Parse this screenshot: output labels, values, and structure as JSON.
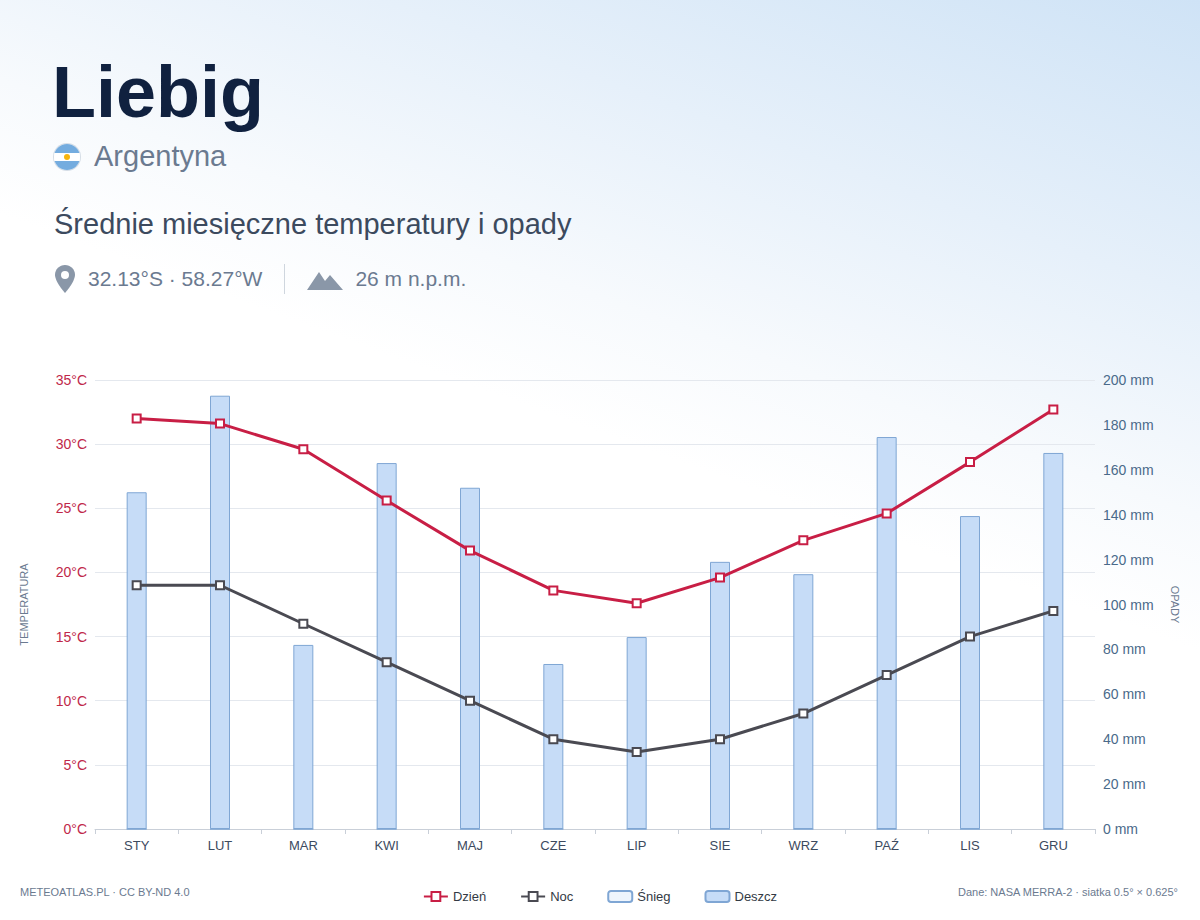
{
  "header": {
    "title": "Liebig",
    "country": "Argentyna",
    "subtitle": "Średnie miesięczne temperatury i opady",
    "coordinates": "32.13°S · 58.27°W",
    "elevation": "26 m n.p.m."
  },
  "footer": {
    "left": "METEOATLAS.PL · CC BY-ND 4.0",
    "right": "Dane: NASA MERRA-2 · siatka 0.5° × 0.625°"
  },
  "chart_data": {
    "type": "combo",
    "categories": [
      "STY",
      "LUT",
      "MAR",
      "KWI",
      "MAJ",
      "CZE",
      "LIP",
      "SIE",
      "WRZ",
      "PAŹ",
      "LIS",
      "GRU"
    ],
    "ylabel": "TEMPERATURA",
    "y2label": "OPADY",
    "ylim": [
      0,
      35
    ],
    "yticks": [
      {
        "value": 0,
        "label": "0°C"
      },
      {
        "value": 5,
        "label": "5°C"
      },
      {
        "value": 10,
        "label": "10°C"
      },
      {
        "value": 15,
        "label": "15°C"
      },
      {
        "value": 20,
        "label": "20°C"
      },
      {
        "value": 25,
        "label": "25°C"
      },
      {
        "value": 30,
        "label": "30°C"
      },
      {
        "value": 35,
        "label": "35°C"
      }
    ],
    "y2lim": [
      0,
      200
    ],
    "y2ticks": [
      {
        "value": 0,
        "label": "0 mm"
      },
      {
        "value": 20,
        "label": "20 mm"
      },
      {
        "value": 40,
        "label": "40 mm"
      },
      {
        "value": 60,
        "label": "60 mm"
      },
      {
        "value": 80,
        "label": "80 mm"
      },
      {
        "value": 100,
        "label": "100 mm"
      },
      {
        "value": 120,
        "label": "120 mm"
      },
      {
        "value": 140,
        "label": "140 mm"
      },
      {
        "value": 160,
        "label": "160 mm"
      },
      {
        "value": 180,
        "label": "180 mm"
      },
      {
        "value": 200,
        "label": "200 mm"
      }
    ],
    "grid": true,
    "legend": "bottom",
    "stacked": true,
    "series": [
      {
        "name": "Dzień",
        "type": "line",
        "color": "#c81e45",
        "marker": "square",
        "values": [
          32,
          31.6,
          29.6,
          25.6,
          21.7,
          18.6,
          17.6,
          19.6,
          22.5,
          24.6,
          28.6,
          32.7
        ]
      },
      {
        "name": "Noc",
        "type": "line",
        "color": "#4a4a52",
        "marker": "square",
        "values": [
          19,
          19,
          16,
          13,
          10,
          7,
          6,
          7,
          9,
          12,
          15,
          17
        ]
      },
      {
        "name": "Śnieg",
        "type": "bar",
        "axis": "y2",
        "color": "#eef5fd",
        "values": [
          0,
          0,
          0,
          0,
          0,
          0,
          0,
          0,
          0,
          0,
          0,
          0
        ]
      },
      {
        "name": "Deszcz",
        "type": "bar",
        "axis": "y2",
        "color": "#c6dcf7",
        "values": [
          150,
          193,
          82,
          163,
          152,
          73.5,
          85.5,
          119,
          113.5,
          174.6,
          139.4,
          167.5
        ]
      }
    ]
  }
}
